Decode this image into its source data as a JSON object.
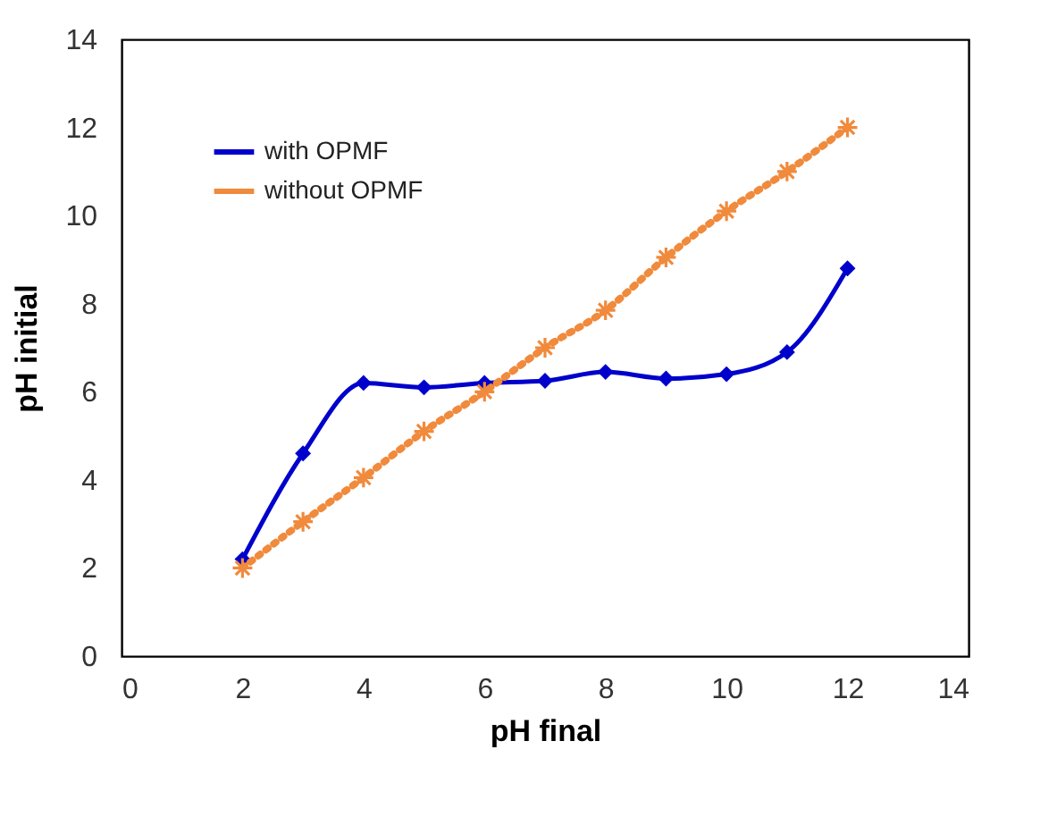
{
  "chart_data": {
    "type": "line",
    "xlabel": "pH final",
    "ylabel": "pH initial",
    "x": [
      2,
      3,
      4,
      5,
      6,
      7,
      8,
      9,
      10,
      11,
      12
    ],
    "series": [
      {
        "name": "with OPMF",
        "color": "#0000cc",
        "marker": "diamond",
        "line_style": "solid",
        "values": [
          2.2,
          4.6,
          6.2,
          6.1,
          6.2,
          6.25,
          6.45,
          6.3,
          6.4,
          6.9,
          8.8
        ]
      },
      {
        "name": "without OPMF",
        "color": "#f08a3c",
        "marker": "cross",
        "line_style": "dotted",
        "values": [
          2,
          3.05,
          4.05,
          5.1,
          6,
          7,
          7.85,
          9.05,
          10.1,
          11,
          12
        ]
      }
    ],
    "xlim": [
      0,
      14
    ],
    "ylim": [
      0,
      14
    ],
    "xticks": [
      0,
      2,
      4,
      6,
      8,
      10,
      12,
      14
    ],
    "yticks": [
      0,
      2,
      4,
      6,
      8,
      10,
      12,
      14
    ],
    "grid": false,
    "legend": "top left"
  }
}
